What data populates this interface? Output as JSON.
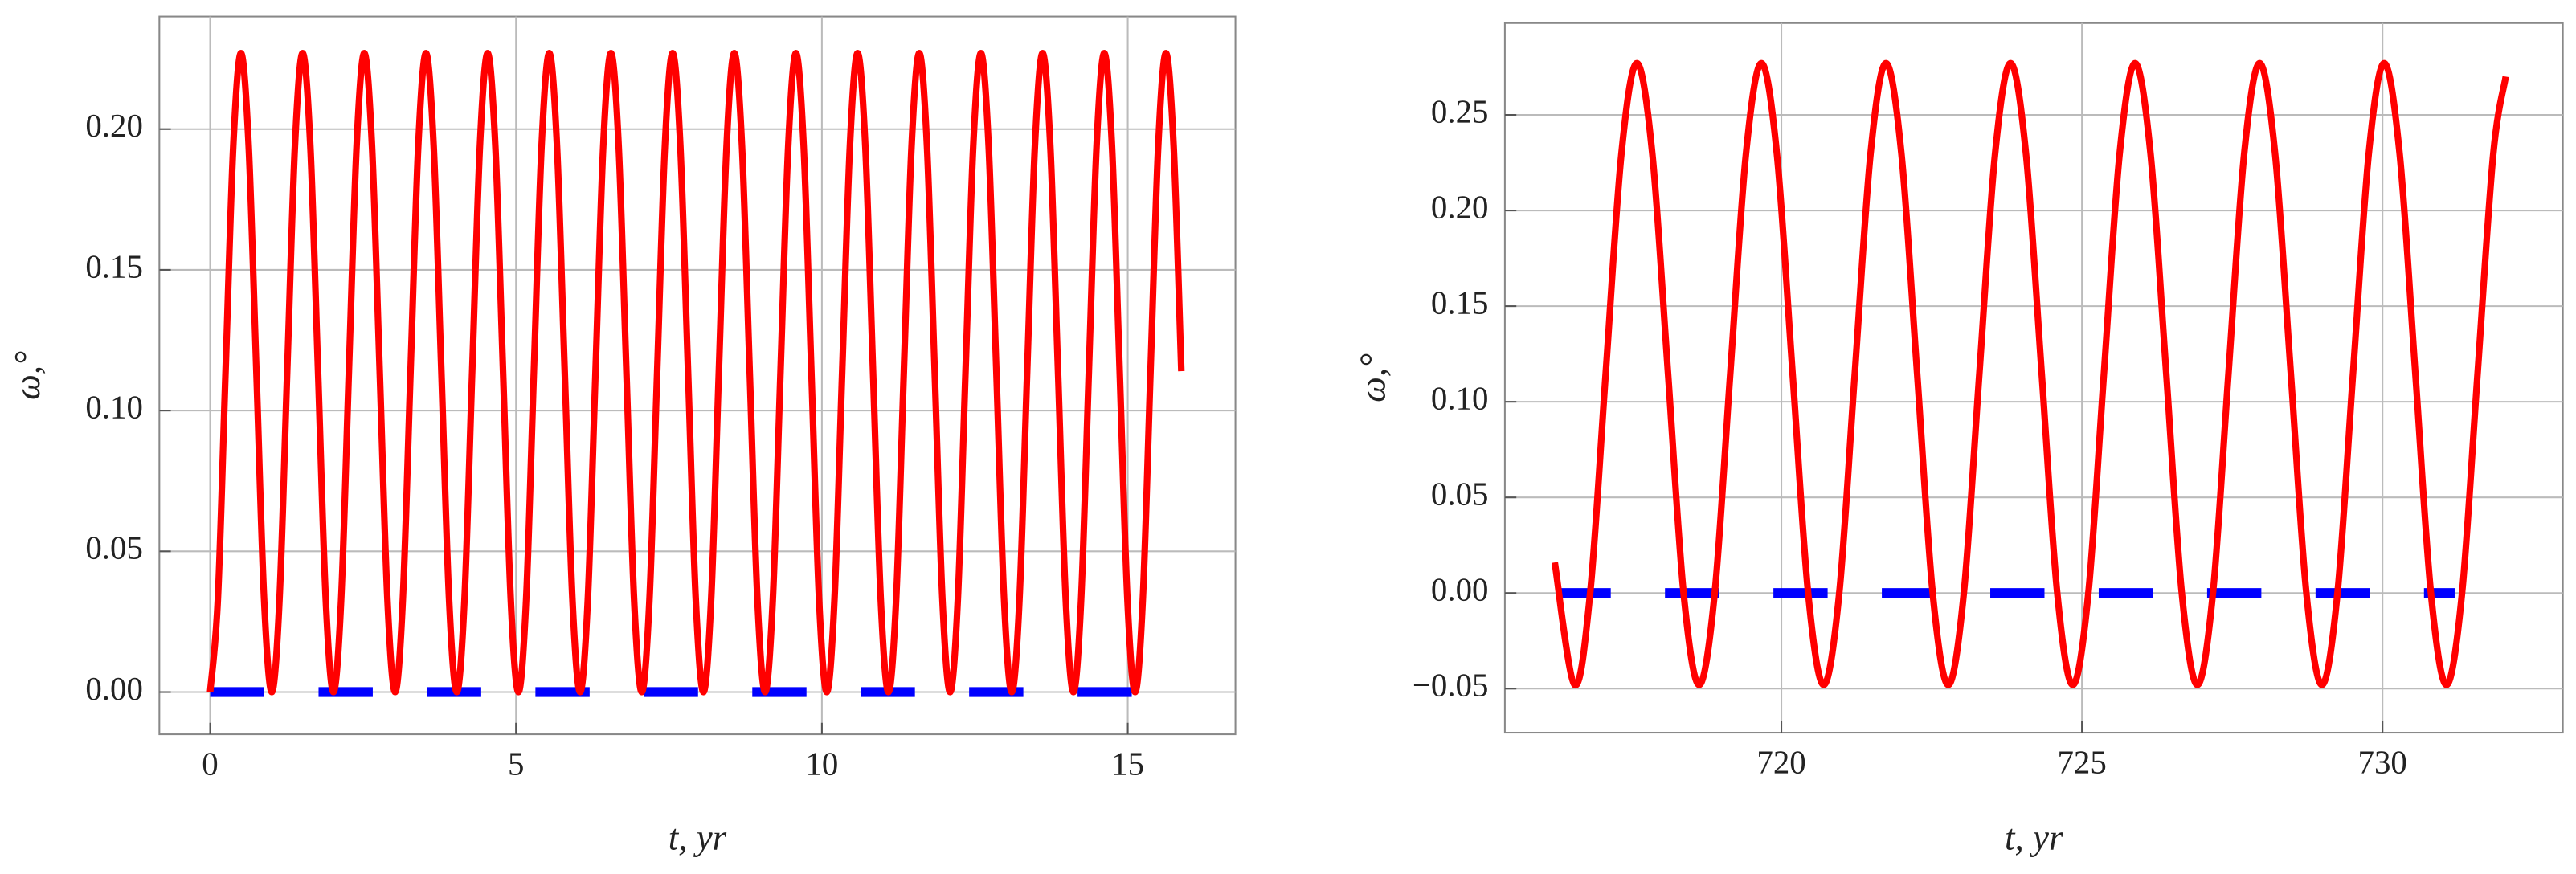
{
  "chart_data": [
    {
      "type": "line",
      "xlabel": "t, yr",
      "ylabel": "ω,°",
      "xlim": [
        -0.83,
        16.76
      ],
      "ylim": [
        -0.015,
        0.24
      ],
      "xticks": [
        0,
        5,
        10,
        15
      ],
      "yticks": [
        {
          "value": 0,
          "label": "0.00"
        },
        0.05,
        {
          "value": 0.1,
          "label": "0.10"
        },
        0.15,
        {
          "value": 0.2,
          "label": "0.20"
        }
      ],
      "grid": true,
      "series": [
        {
          "color": "#ff0000",
          "x": [
            0,
            0.126,
            0.252,
            0.378,
            0.504,
            0.63,
            0.756,
            0.882,
            1.008,
            1.134,
            1.26,
            1.386,
            1.512,
            1.638,
            1.764,
            1.89,
            2.016,
            2.142,
            2.268,
            2.394,
            2.52,
            2.646,
            2.772,
            2.898,
            3.024,
            3.15,
            3.276,
            3.402,
            3.528,
            3.654,
            3.78,
            3.906,
            4.032,
            4.158,
            4.284,
            4.41,
            4.536,
            4.662,
            4.788,
            4.914,
            5.04,
            5.166,
            5.292,
            5.418,
            5.544,
            5.67,
            5.796,
            5.922,
            6.048,
            6.174,
            6.3,
            6.426,
            6.552,
            6.678,
            6.804,
            6.93,
            7.056,
            7.182,
            7.308,
            7.434,
            7.56,
            7.686,
            7.812,
            7.938,
            8.064,
            8.19,
            8.316,
            8.442,
            8.568,
            8.694,
            8.82,
            8.946,
            9.072,
            9.198,
            9.324,
            9.45,
            9.576,
            9.702,
            9.828,
            9.954,
            10.08,
            10.206,
            10.332,
            10.458,
            10.584,
            10.71,
            10.836,
            10.962,
            11.088,
            11.214,
            11.34,
            11.466,
            11.592,
            11.718,
            11.844,
            11.97,
            12.096,
            12.222,
            12.348,
            12.474,
            12.6,
            12.726,
            12.852,
            12.978,
            13.104,
            13.23,
            13.356,
            13.482,
            13.608,
            13.734,
            13.86,
            13.986,
            14.112,
            14.238,
            14.364,
            14.49,
            14.616,
            14.742,
            14.868,
            14.994,
            15.12,
            15.246,
            15.372,
            15.498,
            15.624,
            15.75,
            15.876
          ],
          "values": [
            0,
            0.033,
            0.114,
            0.194,
            0.227,
            0.194,
            0.114,
            0.033,
            0,
            0.033,
            0.114,
            0.194,
            0.227,
            0.194,
            0.114,
            0.033,
            0,
            0.033,
            0.114,
            0.194,
            0.227,
            0.194,
            0.114,
            0.033,
            0,
            0.033,
            0.114,
            0.194,
            0.227,
            0.194,
            0.114,
            0.033,
            0,
            0.033,
            0.114,
            0.194,
            0.227,
            0.194,
            0.114,
            0.033,
            0,
            0.033,
            0.114,
            0.194,
            0.227,
            0.194,
            0.114,
            0.033,
            0,
            0.033,
            0.114,
            0.194,
            0.227,
            0.194,
            0.114,
            0.033,
            0,
            0.033,
            0.114,
            0.194,
            0.227,
            0.194,
            0.114,
            0.033,
            0,
            0.033,
            0.114,
            0.194,
            0.227,
            0.194,
            0.114,
            0.033,
            0,
            0.033,
            0.114,
            0.194,
            0.227,
            0.194,
            0.114,
            0.033,
            0,
            0.033,
            0.114,
            0.194,
            0.227,
            0.194,
            0.114,
            0.033,
            0,
            0.033,
            0.114,
            0.194,
            0.227,
            0.194,
            0.114,
            0.033,
            0,
            0.033,
            0.114,
            0.194,
            0.227,
            0.194,
            0.114,
            0.033,
            0,
            0.033,
            0.114,
            0.194,
            0.227,
            0.194,
            0.114,
            0.033,
            0,
            0.033,
            0.114,
            0.194,
            0.227,
            0.194,
            0.114,
            0.033,
            0,
            0.033,
            0.114,
            0.194,
            0.227,
            0.194,
            0.114
          ]
        },
        {
          "color": "#0000ff",
          "dashed": true,
          "x": [
            0,
            15.9
          ],
          "values": [
            0,
            0
          ]
        }
      ]
    },
    {
      "type": "line",
      "xlabel": "t, yr",
      "ylabel": "ω,°",
      "xlim": [
        715.4,
        733
      ],
      "ylim": [
        -0.073,
        0.298
      ],
      "xticks": [
        720,
        725,
        730
      ],
      "yticks": [
        {
          "value": -0.05,
          "label": "−0.05"
        },
        {
          "value": 0,
          "label": "0.00"
        },
        0.05,
        {
          "value": 0.1,
          "label": "0.10"
        },
        0.15,
        {
          "value": 0.2,
          "label": "0.20"
        },
        0.25
      ],
      "grid": true,
      "series": [
        {
          "color": "#ff0000",
          "x": [
            716.23,
            716.56,
            716.819,
            717.078,
            717.337,
            717.596,
            717.855,
            718.114,
            718.373,
            718.632,
            718.891,
            719.15,
            719.409,
            719.668,
            719.927,
            720.186,
            720.445,
            720.704,
            720.963,
            721.222,
            721.481,
            721.74,
            721.999,
            722.258,
            722.517,
            722.776,
            723.035,
            723.294,
            723.553,
            723.812,
            724.071,
            724.33,
            724.589,
            724.848,
            725.107,
            725.366,
            725.625,
            725.884,
            726.143,
            726.402,
            726.661,
            726.92,
            727.179,
            727.438,
            727.697,
            727.956,
            728.215,
            728.474,
            728.733,
            728.992,
            729.251,
            729.51,
            729.769,
            730.028,
            730.287,
            730.546,
            730.805,
            731.064,
            731.323,
            731.582,
            731.841,
            732.05
          ],
          "values": [
            0.016,
            -0.048,
            0,
            0.115,
            0.229,
            0.277,
            0.229,
            0.115,
            0,
            -0.048,
            0,
            0.115,
            0.229,
            0.277,
            0.229,
            0.115,
            0,
            -0.048,
            0,
            0.115,
            0.229,
            0.277,
            0.229,
            0.115,
            0,
            -0.048,
            0,
            0.115,
            0.229,
            0.277,
            0.229,
            0.115,
            0,
            -0.048,
            0,
            0.115,
            0.229,
            0.277,
            0.229,
            0.115,
            0,
            -0.048,
            0,
            0.115,
            0.229,
            0.277,
            0.229,
            0.115,
            0,
            -0.048,
            0,
            0.115,
            0.229,
            0.277,
            0.229,
            0.115,
            0,
            -0.048,
            0,
            0.115,
            0.229,
            0.27
          ]
        },
        {
          "color": "#0000ff",
          "dashed": true,
          "x": [
            716.26,
            731.2
          ],
          "values": [
            0,
            0
          ]
        }
      ]
    }
  ]
}
